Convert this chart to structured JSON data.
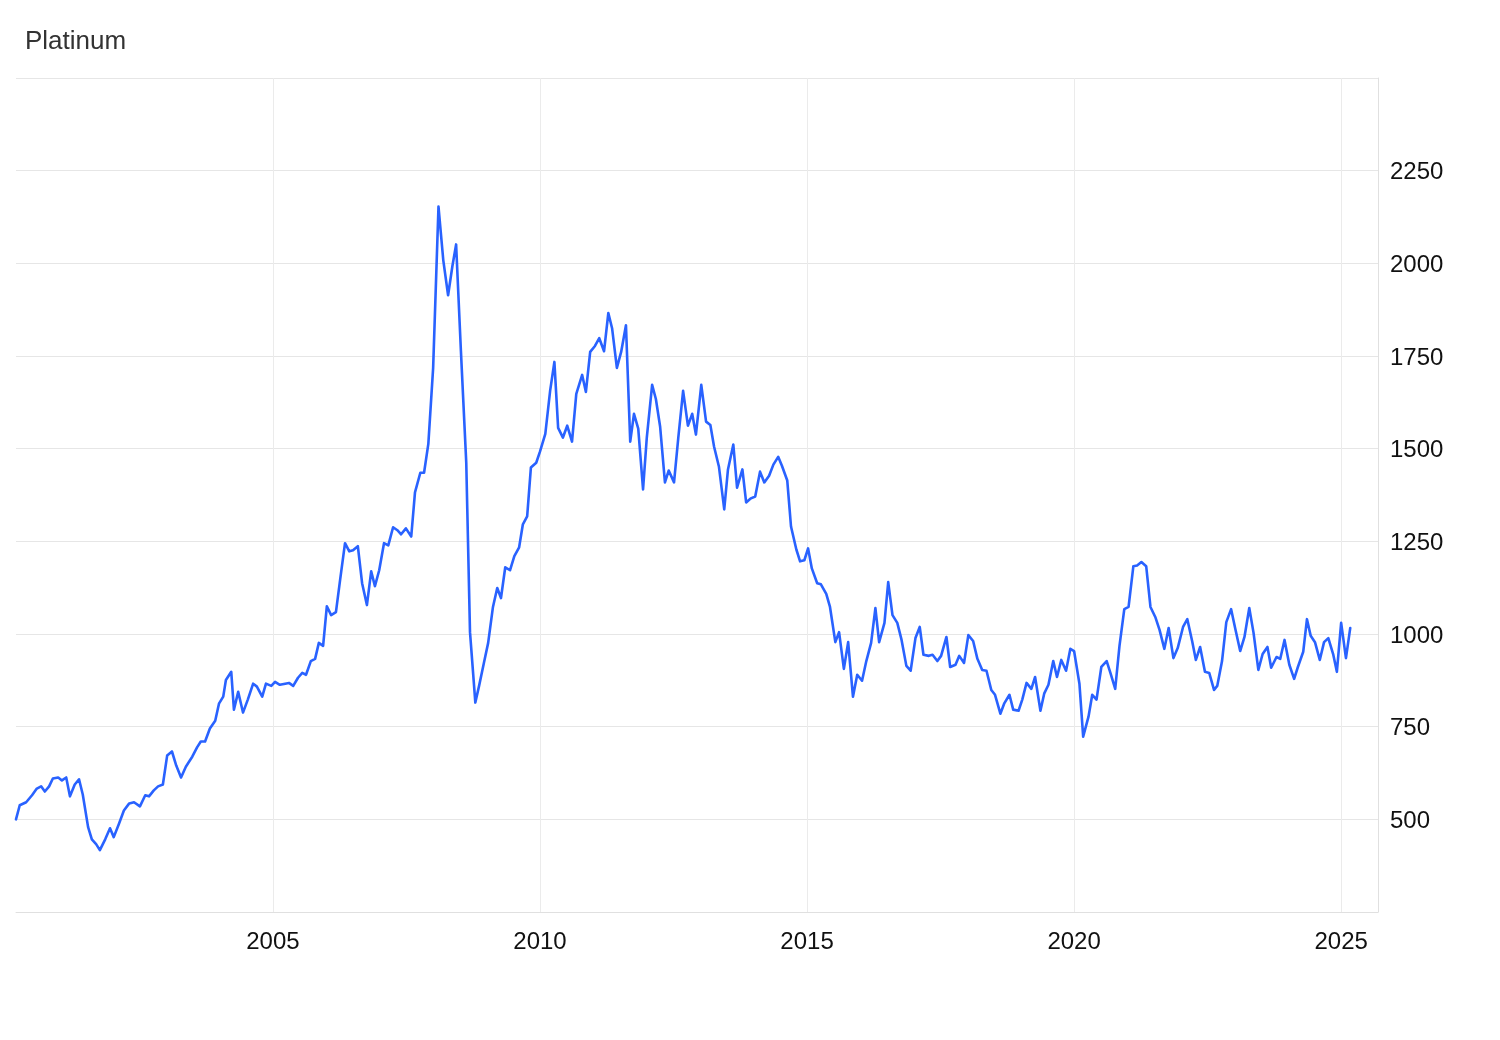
{
  "chart_data": {
    "type": "line",
    "title": "Platinum",
    "x": [
      2000.19,
      2000.26,
      2000.38,
      2000.49,
      2000.58,
      2000.66,
      2000.73,
      2000.81,
      2000.88,
      2000.98,
      2001.05,
      2001.13,
      2001.2,
      2001.29,
      2001.37,
      2001.44,
      2001.54,
      2001.61,
      2001.69,
      2001.76,
      2001.86,
      2001.95,
      2002.02,
      2002.12,
      2002.21,
      2002.31,
      2002.4,
      2002.51,
      2002.61,
      2002.68,
      2002.77,
      2002.85,
      2002.94,
      2003.02,
      2003.11,
      2003.19,
      2003.28,
      2003.37,
      2003.49,
      2003.58,
      2003.65,
      2003.73,
      2003.82,
      2003.92,
      2003.99,
      2004.07,
      2004.12,
      2004.22,
      2004.27,
      2004.35,
      2004.44,
      2004.53,
      2004.63,
      2004.7,
      2004.8,
      2004.87,
      2004.97,
      2005.04,
      2005.13,
      2005.23,
      2005.3,
      2005.38,
      2005.47,
      2005.55,
      2005.62,
      2005.71,
      2005.79,
      2005.86,
      2005.94,
      2006.01,
      2006.09,
      2006.18,
      2006.26,
      2006.35,
      2006.43,
      2006.5,
      2006.59,
      2006.67,
      2006.76,
      2006.84,
      2006.91,
      2006.99,
      2007.08,
      2007.16,
      2007.25,
      2007.33,
      2007.4,
      2007.49,
      2007.59,
      2007.66,
      2007.76,
      2007.83,
      2007.91,
      2008.0,
      2008.1,
      2008.19,
      2008.28,
      2008.36,
      2008.43,
      2008.52,
      2008.62,
      2008.69,
      2008.79,
      2008.86,
      2008.95,
      2009.03,
      2009.12,
      2009.2,
      2009.27,
      2009.35,
      2009.44,
      2009.52,
      2009.61,
      2009.68,
      2009.76,
      2009.83,
      2009.93,
      2010.0,
      2010.1,
      2010.19,
      2010.27,
      2010.34,
      2010.43,
      2010.51,
      2010.6,
      2010.68,
      2010.79,
      2010.86,
      2010.94,
      2011.03,
      2011.11,
      2011.2,
      2011.28,
      2011.35,
      2011.44,
      2011.52,
      2011.61,
      2011.69,
      2011.76,
      2011.84,
      2011.93,
      2012.0,
      2012.1,
      2012.17,
      2012.25,
      2012.34,
      2012.41,
      2012.51,
      2012.59,
      2012.68,
      2012.77,
      2012.85,
      2012.92,
      2013.02,
      2013.11,
      2013.19,
      2013.26,
      2013.35,
      2013.45,
      2013.52,
      2013.62,
      2013.69,
      2013.79,
      2013.86,
      2013.95,
      2014.03,
      2014.12,
      2014.2,
      2014.29,
      2014.37,
      2014.46,
      2014.53,
      2014.63,
      2014.7,
      2014.8,
      2014.87,
      2014.95,
      2015.02,
      2015.09,
      2015.19,
      2015.26,
      2015.36,
      2015.43,
      2015.53,
      2015.6,
      2015.69,
      2015.77,
      2015.86,
      2015.94,
      2016.03,
      2016.11,
      2016.2,
      2016.28,
      2016.35,
      2016.45,
      2016.52,
      2016.6,
      2016.69,
      2016.77,
      2016.86,
      2016.94,
      2017.03,
      2017.11,
      2017.18,
      2017.28,
      2017.35,
      2017.44,
      2017.51,
      2017.61,
      2017.68,
      2017.78,
      2017.85,
      2017.94,
      2018.02,
      2018.11,
      2018.19,
      2018.28,
      2018.36,
      2018.45,
      2018.52,
      2018.62,
      2018.69,
      2018.79,
      2018.86,
      2018.96,
      2019.03,
      2019.11,
      2019.2,
      2019.27,
      2019.37,
      2019.44,
      2019.52,
      2019.61,
      2019.68,
      2019.76,
      2019.85,
      2019.93,
      2020.0,
      2020.1,
      2020.17,
      2020.27,
      2020.34,
      2020.42,
      2020.51,
      2020.61,
      2020.68,
      2020.77,
      2020.85,
      2020.94,
      2021.02,
      2021.11,
      2021.18,
      2021.26,
      2021.35,
      2021.43,
      2021.52,
      2021.6,
      2021.69,
      2021.77,
      2021.86,
      2021.94,
      2022.04,
      2022.12,
      2022.21,
      2022.28,
      2022.36,
      2022.45,
      2022.53,
      2022.62,
      2022.68,
      2022.77,
      2022.85,
      2022.94,
      2023.02,
      2023.11,
      2023.19,
      2023.28,
      2023.36,
      2023.45,
      2023.53,
      2023.62,
      2023.69,
      2023.79,
      2023.86,
      2023.94,
      2024.03,
      2024.12,
      2024.19,
      2024.29,
      2024.36,
      2024.43,
      2024.51,
      2024.6,
      2024.68,
      2024.76,
      2024.85,
      2024.92,
      2025.0,
      2025.09,
      2025.17
    ],
    "series": [
      {
        "color": "#2962ff",
        "values": [
          500,
          538,
          546,
          565,
          583,
          589,
          575,
          589,
          610,
          613,
          605,
          613,
          562,
          594,
          608,
          567,
          479,
          446,
          433,
          417,
          446,
          476,
          452,
          489,
          524,
          543,
          546,
          535,
          565,
          562,
          578,
          589,
          594,
          672,
          683,
          645,
          613,
          642,
          669,
          694,
          710,
          710,
          745,
          766,
          812,
          831,
          876,
          898,
          796,
          844,
          788,
          823,
          866,
          858,
          831,
          866,
          860,
          871,
          863,
          866,
          868,
          860,
          882,
          895,
          890,
          927,
          933,
          976,
          968,
          1075,
          1051,
          1059,
          1148,
          1245,
          1223,
          1226,
          1237,
          1137,
          1078,
          1169,
          1129,
          1172,
          1245,
          1239,
          1288,
          1280,
          1269,
          1285,
          1263,
          1382,
          1435,
          1435,
          1513,
          1718,
          2153,
          2008,
          1914,
          1992,
          2051,
          1763,
          1462,
          1005,
          815,
          860,
          922,
          976,
          1073,
          1124,
          1097,
          1180,
          1172,
          1210,
          1234,
          1296,
          1317,
          1449,
          1462,
          1492,
          1540,
          1656,
          1734,
          1556,
          1530,
          1562,
          1519,
          1648,
          1699,
          1653,
          1761,
          1777,
          1798,
          1763,
          1866,
          1825,
          1718,
          1761,
          1833,
          1519,
          1594,
          1554,
          1390,
          1530,
          1672,
          1634,
          1559,
          1409,
          1441,
          1409,
          1530,
          1656,
          1562,
          1594,
          1538,
          1672,
          1573,
          1564,
          1505,
          1452,
          1336,
          1444,
          1511,
          1395,
          1444,
          1355,
          1366,
          1371,
          1438,
          1409,
          1427,
          1457,
          1478,
          1454,
          1414,
          1290,
          1228,
          1196,
          1199,
          1231,
          1177,
          1137,
          1134,
          1108,
          1073,
          978,
          1005,
          906,
          978,
          831,
          890,
          874,
          927,
          976,
          1070,
          978,
          1030,
          1140,
          1051,
          1030,
          984,
          914,
          901,
          989,
          1019,
          944,
          941,
          944,
          927,
          941,
          992,
          911,
          917,
          941,
          922,
          997,
          981,
          933,
          903,
          901,
          849,
          836,
          785,
          812,
          836,
          796,
          793,
          823,
          868,
          852,
          884,
          793,
          839,
          863,
          927,
          884,
          930,
          901,
          960,
          954,
          866,
          723,
          777,
          836,
          823,
          911,
          927,
          895,
          852,
          968,
          1067,
          1073,
          1183,
          1185,
          1194,
          1183,
          1073,
          1046,
          1011,
          960,
          1016,
          935,
          962,
          1019,
          1040,
          981,
          930,
          965,
          898,
          895,
          849,
          860,
          927,
          1032,
          1067,
          1013,
          954,
          992,
          1070,
          1003,
          903,
          946,
          965,
          909,
          938,
          933,
          984,
          917,
          879,
          911,
          952,
          1040,
          995,
          978,
          930,
          978,
          989,
          946,
          898,
          1030,
          935,
          1016
        ]
      }
    ],
    "xlim": [
      2000.19,
      2025.69
    ],
    "xticks": [
      2005,
      2010,
      2015,
      2020,
      2025
    ],
    "ylim": [
      250,
      2500
    ],
    "yticks": [
      {
        "value": 250,
        "label": null
      },
      500,
      750,
      1000,
      1250,
      1500,
      1750,
      2000,
      2250,
      {
        "value": 2500,
        "label": null
      }
    ],
    "grid": true,
    "marker": "none",
    "line_style": "solid"
  }
}
